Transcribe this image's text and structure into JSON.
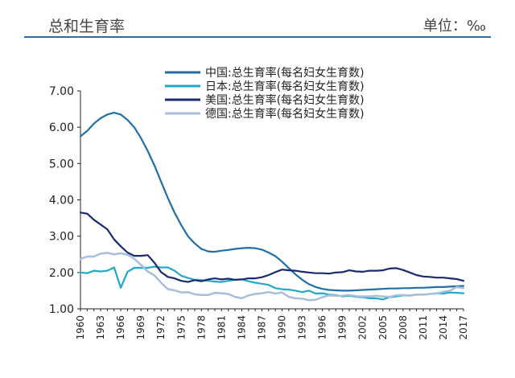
{
  "header": {
    "title": "总和生育率",
    "unit_label": "单位：",
    "unit_value": "‰"
  },
  "chart_data": {
    "type": "line",
    "title": "总和生育率",
    "xlabel": "",
    "ylabel": "",
    "ylim": [
      1.0,
      7.0
    ],
    "xlim": [
      1960,
      2017
    ],
    "yticks": [
      "1.00",
      "2.00",
      "3.00",
      "4.00",
      "5.00",
      "6.00",
      "7.00"
    ],
    "xticks": [
      "1960",
      "1963",
      "1966",
      "1969",
      "1972",
      "1975",
      "1978",
      "1981",
      "1984",
      "1987",
      "1990",
      "1993",
      "1996",
      "1999",
      "2002",
      "2005",
      "2008",
      "2011",
      "2014",
      "2017"
    ],
    "grid": false,
    "legend_position": "top-center",
    "series": [
      {
        "name": "中国:总生育率(每名妇女生育数)",
        "color": "#1f6fa8",
        "x": [
          1960,
          1961,
          1962,
          1963,
          1964,
          1965,
          1966,
          1967,
          1968,
          1969,
          1970,
          1971,
          1972,
          1973,
          1974,
          1975,
          1976,
          1977,
          1978,
          1979,
          1980,
          1981,
          1982,
          1983,
          1984,
          1985,
          1986,
          1987,
          1988,
          1989,
          1990,
          1991,
          1992,
          1993,
          1994,
          1995,
          1996,
          1997,
          1998,
          1999,
          2000,
          2001,
          2002,
          2003,
          2004,
          2005,
          2006,
          2007,
          2008,
          2009,
          2010,
          2011,
          2012,
          2013,
          2014,
          2015,
          2016,
          2017
        ],
        "y": [
          5.75,
          5.9,
          6.1,
          6.25,
          6.35,
          6.4,
          6.35,
          6.2,
          6.0,
          5.7,
          5.35,
          4.95,
          4.5,
          4.05,
          3.65,
          3.3,
          3.0,
          2.8,
          2.65,
          2.58,
          2.57,
          2.6,
          2.62,
          2.65,
          2.67,
          2.68,
          2.67,
          2.63,
          2.55,
          2.45,
          2.3,
          2.12,
          1.95,
          1.8,
          1.68,
          1.6,
          1.55,
          1.52,
          1.51,
          1.5,
          1.5,
          1.51,
          1.52,
          1.53,
          1.54,
          1.55,
          1.56,
          1.56,
          1.57,
          1.57,
          1.58,
          1.58,
          1.59,
          1.6,
          1.6,
          1.61,
          1.62,
          1.63
        ]
      },
      {
        "name": "日本:总生育率(每名妇女生育数)",
        "color": "#22a9c9",
        "x": [
          1960,
          1961,
          1962,
          1963,
          1964,
          1965,
          1966,
          1967,
          1968,
          1969,
          1970,
          1971,
          1972,
          1973,
          1974,
          1975,
          1976,
          1977,
          1978,
          1979,
          1980,
          1981,
          1982,
          1983,
          1984,
          1985,
          1986,
          1987,
          1988,
          1989,
          1990,
          1991,
          1992,
          1993,
          1994,
          1995,
          1996,
          1997,
          1998,
          1999,
          2000,
          2001,
          2002,
          2003,
          2004,
          2005,
          2006,
          2007,
          2008,
          2009,
          2010,
          2011,
          2012,
          2013,
          2014,
          2015,
          2016,
          2017
        ],
        "y": [
          2.0,
          1.98,
          2.05,
          2.03,
          2.05,
          2.14,
          1.58,
          2.02,
          2.13,
          2.13,
          2.13,
          2.16,
          2.14,
          2.14,
          2.05,
          1.91,
          1.85,
          1.8,
          1.79,
          1.77,
          1.75,
          1.74,
          1.77,
          1.8,
          1.81,
          1.76,
          1.72,
          1.69,
          1.66,
          1.57,
          1.54,
          1.53,
          1.5,
          1.46,
          1.5,
          1.42,
          1.43,
          1.39,
          1.38,
          1.34,
          1.36,
          1.33,
          1.32,
          1.29,
          1.29,
          1.26,
          1.32,
          1.34,
          1.37,
          1.37,
          1.39,
          1.39,
          1.41,
          1.43,
          1.42,
          1.45,
          1.44,
          1.43
        ]
      },
      {
        "name": "美国:总生育率(每名妇女生育数)",
        "color": "#1a2a6c",
        "x": [
          1960,
          1961,
          1962,
          1963,
          1964,
          1965,
          1966,
          1967,
          1968,
          1969,
          1970,
          1971,
          1972,
          1973,
          1974,
          1975,
          1976,
          1977,
          1978,
          1979,
          1980,
          1981,
          1982,
          1983,
          1984,
          1985,
          1986,
          1987,
          1988,
          1989,
          1990,
          1991,
          1992,
          1993,
          1994,
          1995,
          1996,
          1997,
          1998,
          1999,
          2000,
          2001,
          2002,
          2003,
          2004,
          2005,
          2006,
          2007,
          2008,
          2009,
          2010,
          2011,
          2012,
          2013,
          2014,
          2015,
          2016,
          2017
        ],
        "y": [
          3.65,
          3.62,
          3.45,
          3.32,
          3.19,
          2.91,
          2.72,
          2.55,
          2.46,
          2.46,
          2.48,
          2.27,
          2.01,
          1.88,
          1.84,
          1.77,
          1.74,
          1.79,
          1.76,
          1.81,
          1.84,
          1.81,
          1.83,
          1.8,
          1.81,
          1.84,
          1.84,
          1.87,
          1.93,
          2.01,
          2.08,
          2.06,
          2.05,
          2.02,
          2.0,
          1.98,
          1.98,
          1.97,
          2.0,
          2.01,
          2.06,
          2.03,
          2.02,
          2.05,
          2.05,
          2.06,
          2.11,
          2.12,
          2.07,
          2.0,
          1.93,
          1.89,
          1.88,
          1.86,
          1.86,
          1.84,
          1.82,
          1.77
        ]
      },
      {
        "name": "德国:总生育率(每名妇女生育数)",
        "color": "#a9bedb",
        "x": [
          1960,
          1961,
          1962,
          1963,
          1964,
          1965,
          1966,
          1967,
          1968,
          1969,
          1970,
          1971,
          1972,
          1973,
          1974,
          1975,
          1976,
          1977,
          1978,
          1979,
          1980,
          1981,
          1982,
          1983,
          1984,
          1985,
          1986,
          1987,
          1988,
          1989,
          1990,
          1991,
          1992,
          1993,
          1994,
          1995,
          1996,
          1997,
          1998,
          1999,
          2000,
          2001,
          2002,
          2003,
          2004,
          2005,
          2006,
          2007,
          2008,
          2009,
          2010,
          2011,
          2012,
          2013,
          2014,
          2015,
          2016,
          2017
        ],
        "y": [
          2.37,
          2.44,
          2.44,
          2.52,
          2.54,
          2.5,
          2.53,
          2.49,
          2.38,
          2.21,
          2.03,
          1.92,
          1.72,
          1.54,
          1.51,
          1.45,
          1.46,
          1.4,
          1.38,
          1.38,
          1.44,
          1.43,
          1.41,
          1.33,
          1.29,
          1.37,
          1.41,
          1.43,
          1.46,
          1.42,
          1.45,
          1.33,
          1.29,
          1.28,
          1.24,
          1.25,
          1.32,
          1.37,
          1.36,
          1.36,
          1.38,
          1.35,
          1.34,
          1.34,
          1.36,
          1.34,
          1.33,
          1.37,
          1.38,
          1.36,
          1.39,
          1.39,
          1.41,
          1.42,
          1.47,
          1.5,
          1.6,
          1.57
        ]
      }
    ]
  }
}
